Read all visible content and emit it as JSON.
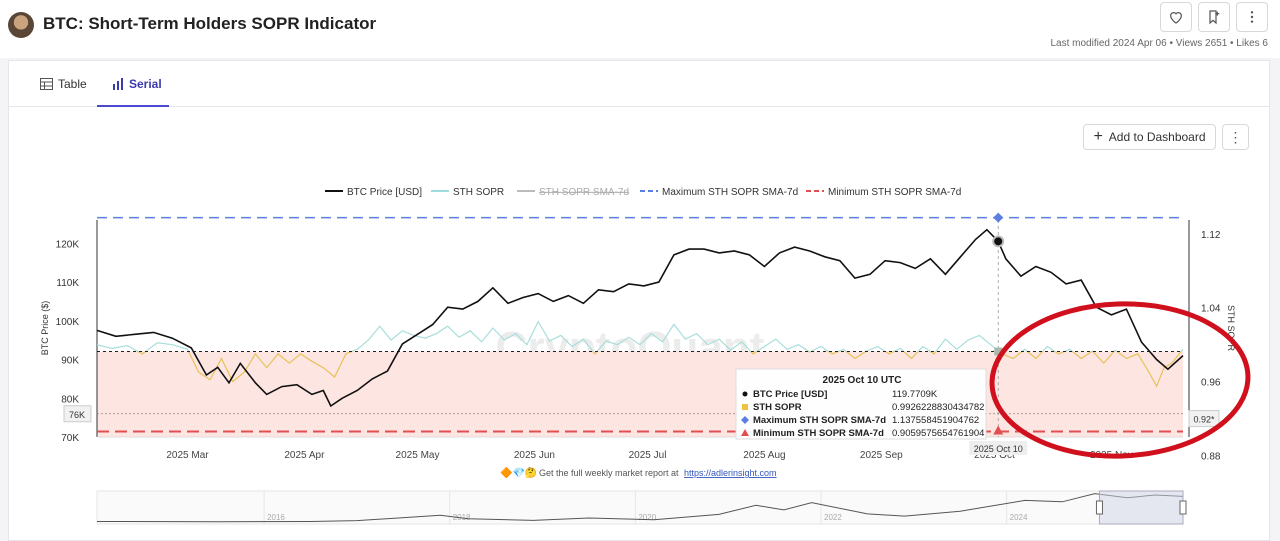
{
  "header": {
    "title": "BTC: Short-Term Holders SOPR Indicator",
    "meta": "Last modified 2024 Apr 06 • Views 2651 • Likes 6",
    "icons": [
      "heart-icon",
      "bookmark-add-icon",
      "more-vertical-icon"
    ]
  },
  "tabs": [
    {
      "label": "Table",
      "icon": "table-icon"
    },
    {
      "label": "Serial",
      "icon": "bar-chart-icon"
    }
  ],
  "toolbar": {
    "add_label": "Add to Dashboard",
    "more_label": "⋮"
  },
  "chart_data": {
    "type": "line",
    "title": "BTC: Short-Term Holders SOPR Indicator",
    "legend": [
      {
        "name": "BTC Price [USD]",
        "color": "#111111",
        "style": "solid"
      },
      {
        "name": "STH SOPR",
        "color": "#9fdcdc",
        "style": "solid"
      },
      {
        "name": "STH SOPR SMA-7d",
        "color": "#bbbbbb",
        "style": "solid",
        "hidden": true
      },
      {
        "name": "Maximum STH SOPR SMA-7d",
        "color": "#5b7fe0",
        "style": "dashed"
      },
      {
        "name": "Minimum STH SOPR SMA-7d",
        "color": "#e05050",
        "style": "dashed"
      }
    ],
    "legend_position": "top-center",
    "ylabel_left": "BTC Price ($)",
    "ylabel_right": "STH SOPR",
    "ylim_left": [
      70000,
      126000
    ],
    "ylim_right": [
      0.9,
      1.135
    ],
    "left_ticks": [
      "120K",
      "110K",
      "100K",
      "90K",
      "80K",
      "70K"
    ],
    "left_tick_values": [
      120000,
      110000,
      100000,
      90000,
      80000,
      70000
    ],
    "right_ticks": [
      "1.12",
      "1.04",
      "0.96",
      "0.88"
    ],
    "right_tick_values": [
      1.12,
      1.04,
      0.96,
      0.88
    ],
    "x_ticks": [
      "2025 Mar",
      "2025 Apr",
      "2025 May",
      "2025 Jun",
      "2025 Jul",
      "2025 Aug",
      "2025 Sep",
      "2025 Oct",
      "2025 Nov"
    ],
    "x_tick_days": [
      35,
      66,
      96,
      127,
      157,
      188,
      219,
      249,
      280
    ],
    "x_range_days": [
      11,
      299
    ],
    "left_marker": {
      "label": "76K",
      "value": 76000
    },
    "right_marker": {
      "label": "0.92*",
      "value": 0.92
    },
    "reference_level": 0.9926,
    "max_line": 1.1376,
    "min_line": 0.906,
    "btc_price": [
      [
        11,
        97500
      ],
      [
        16,
        96000
      ],
      [
        21,
        96500
      ],
      [
        26,
        97000
      ],
      [
        31,
        95500
      ],
      [
        36,
        93000
      ],
      [
        40,
        86000
      ],
      [
        43,
        88000
      ],
      [
        46,
        84000
      ],
      [
        49,
        89000
      ],
      [
        53,
        84000
      ],
      [
        56,
        81000
      ],
      [
        60,
        83000
      ],
      [
        64,
        83500
      ],
      [
        68,
        81000
      ],
      [
        71,
        82000
      ],
      [
        73,
        78000
      ],
      [
        76,
        80000
      ],
      [
        80,
        82000
      ],
      [
        84,
        85000
      ],
      [
        88,
        87000
      ],
      [
        92,
        94000
      ],
      [
        96,
        96500
      ],
      [
        100,
        99000
      ],
      [
        104,
        103500
      ],
      [
        108,
        103000
      ],
      [
        112,
        105000
      ],
      [
        116,
        108500
      ],
      [
        120,
        104500
      ],
      [
        124,
        106000
      ],
      [
        128,
        107000
      ],
      [
        132,
        105000
      ],
      [
        136,
        106500
      ],
      [
        140,
        104500
      ],
      [
        144,
        108000
      ],
      [
        148,
        107500
      ],
      [
        152,
        109500
      ],
      [
        156,
        109000
      ],
      [
        160,
        110000
      ],
      [
        164,
        117000
      ],
      [
        168,
        118500
      ],
      [
        172,
        118500
      ],
      [
        176,
        117500
      ],
      [
        180,
        118000
      ],
      [
        184,
        117000
      ],
      [
        188,
        114000
      ],
      [
        192,
        117500
      ],
      [
        196,
        119000
      ],
      [
        200,
        118000
      ],
      [
        204,
        116500
      ],
      [
        208,
        115500
      ],
      [
        212,
        111000
      ],
      [
        216,
        112000
      ],
      [
        220,
        115500
      ],
      [
        224,
        115000
      ],
      [
        228,
        113500
      ],
      [
        232,
        116000
      ],
      [
        236,
        112000
      ],
      [
        240,
        116500
      ],
      [
        244,
        121000
      ],
      [
        247,
        123500
      ],
      [
        250,
        120500
      ],
      [
        252,
        116000
      ],
      [
        256,
        111500
      ],
      [
        260,
        114000
      ],
      [
        264,
        112500
      ],
      [
        268,
        109500
      ],
      [
        272,
        110500
      ],
      [
        276,
        103500
      ],
      [
        280,
        101500
      ],
      [
        284,
        103000
      ],
      [
        288,
        94500
      ],
      [
        292,
        90000
      ],
      [
        295,
        87500
      ],
      [
        299,
        91000
      ]
    ],
    "sth_sopr": [
      [
        11,
        1.0
      ],
      [
        15,
        0.996
      ],
      [
        19,
        0.999
      ],
      [
        23,
        0.99
      ],
      [
        27,
        1.002
      ],
      [
        31,
        1.0
      ],
      [
        35,
        0.995
      ],
      [
        38,
        0.97
      ],
      [
        41,
        0.962
      ],
      [
        44,
        0.985
      ],
      [
        47,
        0.96
      ],
      [
        50,
        0.97
      ],
      [
        53,
        0.99
      ],
      [
        56,
        0.975
      ],
      [
        59,
        0.99
      ],
      [
        62,
        0.98
      ],
      [
        65,
        0.99
      ],
      [
        68,
        0.982
      ],
      [
        71,
        0.975
      ],
      [
        74,
        0.965
      ],
      [
        77,
        0.99
      ],
      [
        80,
        0.995
      ],
      [
        83,
        1.005
      ],
      [
        86,
        1.02
      ],
      [
        89,
        1.005
      ],
      [
        92,
        1.015
      ],
      [
        95,
        1.01
      ],
      [
        98,
        1.007
      ],
      [
        101,
        1.012
      ],
      [
        104,
        1.02
      ],
      [
        107,
        1.008
      ],
      [
        110,
        1.015
      ],
      [
        113,
        1.003
      ],
      [
        116,
        1.018
      ],
      [
        119,
        1.005
      ],
      [
        122,
        1.012
      ],
      [
        125,
        1.0
      ],
      [
        128,
        1.025
      ],
      [
        131,
        1.004
      ],
      [
        134,
        1.01
      ],
      [
        137,
        0.998
      ],
      [
        140,
        1.006
      ],
      [
        143,
        0.99
      ],
      [
        146,
        1.004
      ],
      [
        149,
        1.0
      ],
      [
        152,
        1.008
      ],
      [
        155,
        1.0
      ],
      [
        158,
        1.012
      ],
      [
        161,
        1.003
      ],
      [
        164,
        1.022
      ],
      [
        167,
        1.006
      ],
      [
        170,
        1.012
      ],
      [
        173,
        1.0
      ],
      [
        176,
        1.006
      ],
      [
        179,
        0.994
      ],
      [
        182,
        1.003
      ],
      [
        185,
        0.99
      ],
      [
        188,
        0.998
      ],
      [
        191,
        1.006
      ],
      [
        194,
        0.995
      ],
      [
        197,
        1.0
      ],
      [
        200,
        0.992
      ],
      [
        203,
        0.998
      ],
      [
        206,
        0.99
      ],
      [
        209,
        0.995
      ],
      [
        212,
        0.985
      ],
      [
        215,
        0.993
      ],
      [
        218,
        0.998
      ],
      [
        221,
        0.99
      ],
      [
        224,
        0.996
      ],
      [
        227,
        0.985
      ],
      [
        230,
        0.998
      ],
      [
        233,
        0.99
      ],
      [
        236,
        1.006
      ],
      [
        239,
        0.995
      ],
      [
        242,
        1.005
      ],
      [
        245,
        1.01
      ],
      [
        248,
        1.0
      ],
      [
        251,
        0.99
      ],
      [
        254,
        0.985
      ],
      [
        257,
        0.995
      ],
      [
        260,
        0.985
      ],
      [
        263,
        0.998
      ],
      [
        266,
        0.99
      ],
      [
        269,
        0.995
      ],
      [
        272,
        0.985
      ],
      [
        275,
        0.993
      ],
      [
        278,
        0.98
      ],
      [
        281,
        0.994
      ],
      [
        284,
        0.985
      ],
      [
        287,
        0.99
      ],
      [
        290,
        0.97
      ],
      [
        292,
        0.955
      ],
      [
        294,
        0.975
      ],
      [
        296,
        0.98
      ],
      [
        299,
        0.995
      ]
    ],
    "crosshair_day": 250,
    "tooltip": {
      "date": "2025 Oct 10 UTC",
      "rows": [
        {
          "name": "BTC Price [USD]",
          "value": "119.7709K",
          "color": "#111111",
          "shape": "circle"
        },
        {
          "name": "STH SOPR",
          "value": "0.9926228830434782",
          "color": "#f0c040",
          "shape": "square"
        },
        {
          "name": "Maximum STH SOPR SMA-7d",
          "value": "1.137558451904762",
          "color": "#5b7fe0",
          "shape": "diamond"
        },
        {
          "name": "Minimum STH SOPR SMA-7d",
          "value": "0.9059575654761904",
          "color": "#e05050",
          "shape": "triangle"
        }
      ]
    },
    "x_cursor_label": "2025 Oct 10",
    "watermark": "CryptoQuant",
    "footer_note": "Get the full weekly market report at",
    "footer_link": "https://adlerinsight.com",
    "footer_emoji": "🔶💎🤔",
    "navigator_years": [
      "2016",
      "2018",
      "2020",
      "2022",
      "2024"
    ],
    "navigator_year_values": [
      2016,
      2018,
      2020,
      2022,
      2024
    ],
    "navigator_range": [
      2014.2,
      2025.9
    ],
    "navigator_window": [
      2025.0,
      2025.9
    ],
    "navigator_series": [
      [
        2014.2,
        0.02
      ],
      [
        2015.5,
        0.01
      ],
      [
        2016.5,
        0.02
      ],
      [
        2017.0,
        0.05
      ],
      [
        2017.9,
        0.25
      ],
      [
        2018.2,
        0.12
      ],
      [
        2018.9,
        0.06
      ],
      [
        2019.5,
        0.15
      ],
      [
        2020.2,
        0.08
      ],
      [
        2020.9,
        0.28
      ],
      [
        2021.3,
        0.62
      ],
      [
        2021.6,
        0.45
      ],
      [
        2021.9,
        0.72
      ],
      [
        2022.5,
        0.3
      ],
      [
        2022.9,
        0.22
      ],
      [
        2023.5,
        0.4
      ],
      [
        2024.2,
        0.8
      ],
      [
        2024.6,
        0.75
      ],
      [
        2024.95,
        1.05
      ],
      [
        2025.3,
        0.9
      ],
      [
        2025.6,
        1.0
      ],
      [
        2025.9,
        0.95
      ]
    ]
  },
  "annotation": {
    "type": "ellipse",
    "color": "#d1101e",
    "note": "hand-drawn circle"
  }
}
